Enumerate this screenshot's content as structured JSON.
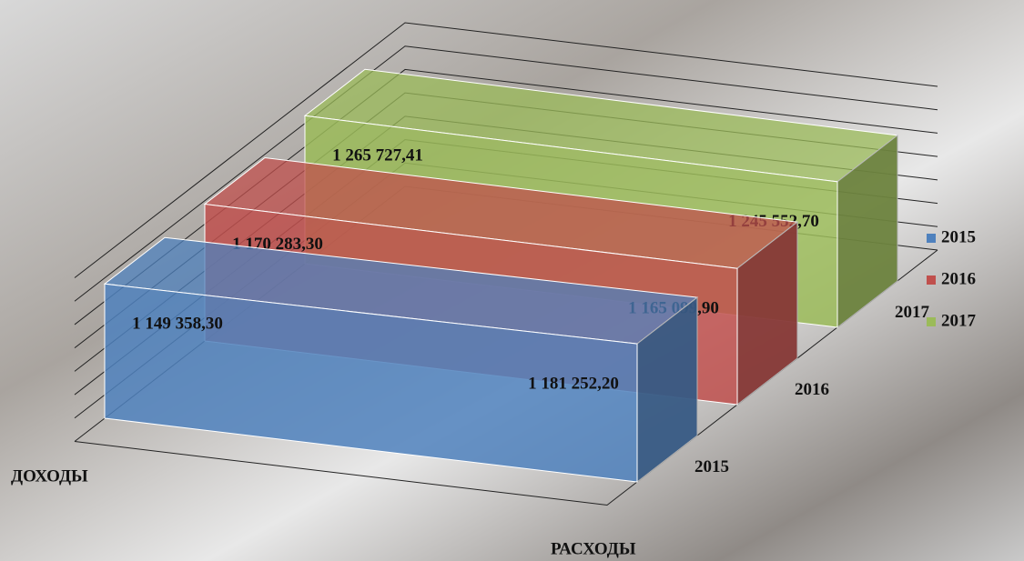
{
  "chart_data": {
    "type": "area",
    "categories": [
      "ДОХОДЫ",
      "РАСХОДЫ"
    ],
    "series": [
      {
        "name": "2015",
        "color": "#4f81bd",
        "values": [
          1149358.3,
          1181252.2
        ],
        "value_labels": [
          "1 149 358,30",
          "1 181 252,20"
        ]
      },
      {
        "name": "2016",
        "color": "#c0504d",
        "values": [
          1170283.3,
          1165099.9
        ],
        "value_labels": [
          "1 170 283,30",
          "1 165 099,90"
        ]
      },
      {
        "name": "2017",
        "color": "#9bbb59",
        "values": [
          1265727.41,
          1245552.7
        ],
        "value_labels": [
          "1 265 727,41",
          "1 245 552,70"
        ]
      }
    ],
    "ylim": [
      0,
      1400000
    ],
    "yticks": [
      0,
      200000,
      400000,
      600000,
      800000,
      1000000,
      1200000,
      1400000
    ],
    "grid": true,
    "legend": "right"
  }
}
